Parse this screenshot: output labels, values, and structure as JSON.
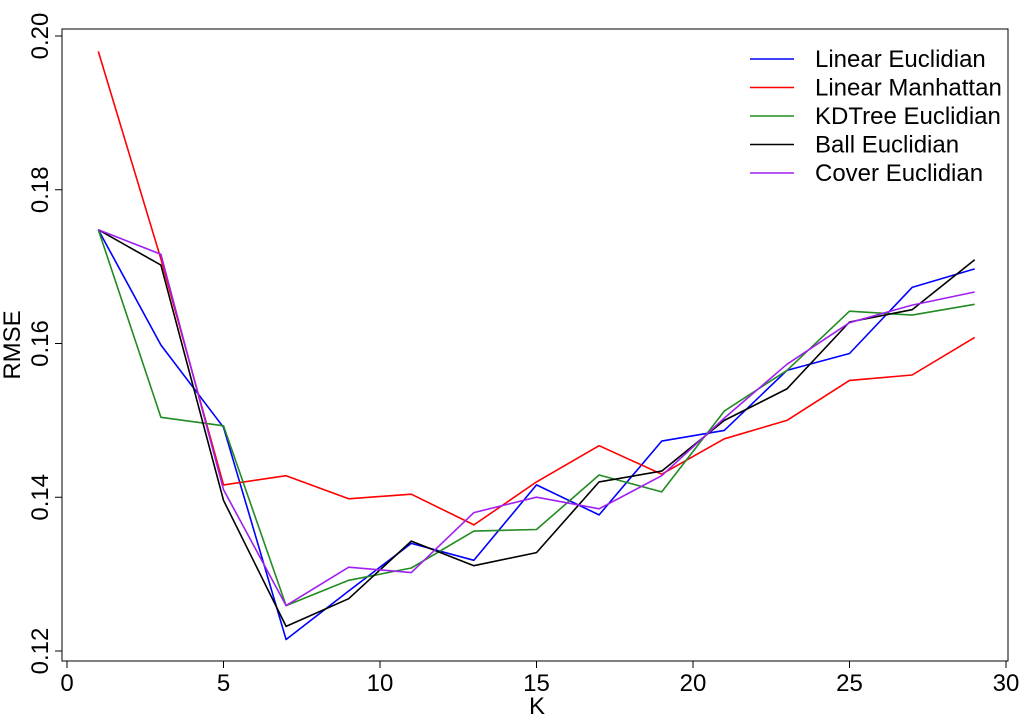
{
  "chart_data": {
    "type": "line",
    "title": "",
    "xlabel": "K",
    "ylabel": "RMSE",
    "xlim": [
      0,
      30
    ],
    "ylim": [
      0.119,
      0.201
    ],
    "xticks": [
      0,
      5,
      10,
      15,
      20,
      25,
      30
    ],
    "xtick_labels": [
      "0",
      "5",
      "10",
      "15",
      "20",
      "25",
      "30"
    ],
    "yticks": [
      0.12,
      0.14,
      0.16,
      0.18,
      0.2
    ],
    "ytick_labels": [
      "0.12",
      "0.14",
      "0.16",
      "0.18",
      "0.20"
    ],
    "grid": false,
    "legend_position": "top-right",
    "x": [
      1,
      3,
      5,
      7,
      9,
      11,
      13,
      15,
      17,
      19,
      21,
      23,
      25,
      27,
      29
    ],
    "series": [
      {
        "name": "Linear Euclidian",
        "color": "#0000ff",
        "values": [
          0.1748,
          0.1598,
          0.1491,
          0.1215,
          0.1278,
          0.134,
          0.1318,
          0.1416,
          0.1377,
          0.1473,
          0.1487,
          0.1565,
          0.1587,
          0.1673,
          0.1697
        ]
      },
      {
        "name": "Linear Manhattan",
        "color": "#ff0000",
        "values": [
          0.198,
          0.171,
          0.1416,
          0.1428,
          0.1398,
          0.1404,
          0.1364,
          0.142,
          0.1467,
          0.143,
          0.1476,
          0.15,
          0.1552,
          0.1559,
          0.1608
        ]
      },
      {
        "name": "KDTree Euclidian",
        "color": "#228b22",
        "values": [
          0.1748,
          0.1504,
          0.1493,
          0.1259,
          0.1292,
          0.1308,
          0.1356,
          0.1358,
          0.1429,
          0.1407,
          0.1512,
          0.1565,
          0.1642,
          0.1637,
          0.1651
        ]
      },
      {
        "name": "Ball Euclidian",
        "color": "#000000",
        "values": [
          0.1748,
          0.1702,
          0.1396,
          0.1232,
          0.1268,
          0.1343,
          0.1311,
          0.1328,
          0.142,
          0.1434,
          0.15,
          0.1541,
          0.1628,
          0.1644,
          0.1709
        ]
      },
      {
        "name": "Cover Euclidian",
        "color": "#a020f0",
        "values": [
          0.1748,
          0.1716,
          0.141,
          0.1259,
          0.1309,
          0.1302,
          0.138,
          0.14,
          0.1385,
          0.1428,
          0.1503,
          0.1573,
          0.1627,
          0.165,
          0.1667
        ]
      }
    ]
  }
}
